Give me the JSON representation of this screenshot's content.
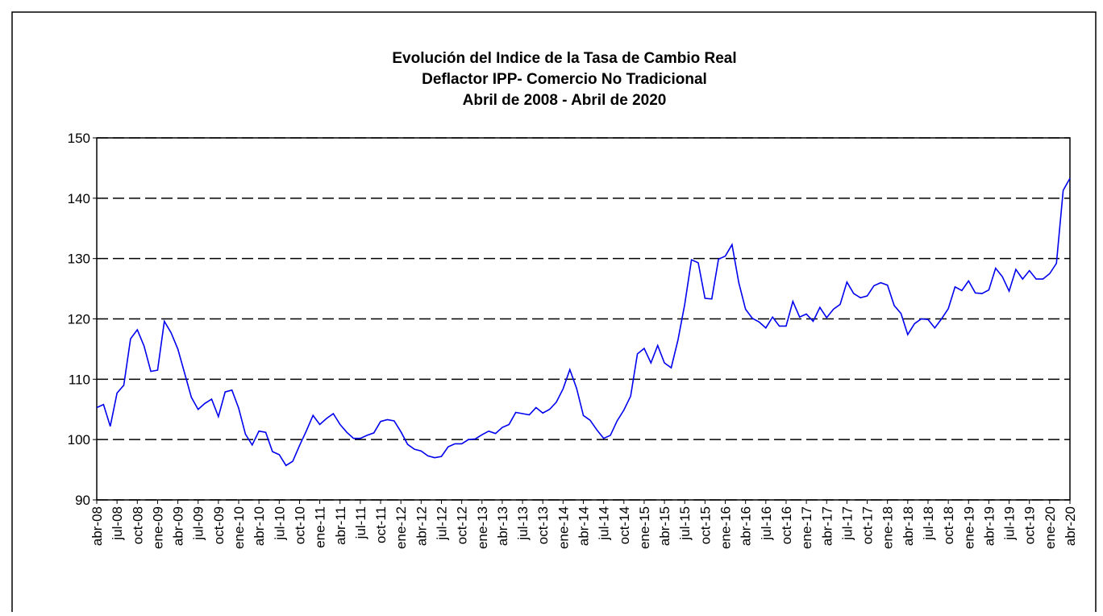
{
  "chart_data": {
    "type": "line",
    "title": [
      "Evolución del Indice de la Tasa de Cambio Real",
      "Deflactor IPP- Comercio No Tradicional",
      "Abril de 2008  -  Abril de 2020"
    ],
    "categories": [
      "abr-08",
      null,
      null,
      "jul-08",
      null,
      null,
      "oct-08",
      null,
      null,
      "ene-09",
      null,
      null,
      "abr-09",
      null,
      null,
      "jul-09",
      null,
      null,
      "oct-09",
      null,
      null,
      "ene-10",
      null,
      null,
      "abr-10",
      null,
      null,
      "jul-10",
      null,
      null,
      "oct-10",
      null,
      null,
      "ene-11",
      null,
      null,
      "abr-11",
      null,
      null,
      "jul-11",
      null,
      null,
      "oct-11",
      null,
      null,
      "ene-12",
      null,
      null,
      "abr-12",
      null,
      null,
      "jul-12",
      null,
      null,
      "oct-12",
      null,
      null,
      "ene-13",
      null,
      null,
      "abr-13",
      null,
      null,
      "jul-13",
      null,
      null,
      "oct-13",
      null,
      null,
      "ene-14",
      null,
      null,
      "abr-14",
      null,
      null,
      "jul-14",
      null,
      null,
      "oct-14",
      null,
      null,
      "ene-15",
      null,
      null,
      "abr-15",
      null,
      null,
      "jul-15",
      null,
      null,
      "oct-15",
      null,
      null,
      "ene-16",
      null,
      null,
      "abr-16",
      null,
      null,
      "jul-16",
      null,
      null,
      "oct-16",
      null,
      null,
      "ene-17",
      null,
      null,
      "abr-17",
      null,
      null,
      "jul-17",
      null,
      null,
      "oct-17",
      null,
      null,
      "ene-18",
      null,
      null,
      "abr-18",
      null,
      null,
      "jul-18",
      null,
      null,
      "oct-18",
      null,
      null,
      "ene-19",
      null,
      null,
      "abr-19",
      null,
      null,
      "jul-19",
      null,
      null,
      "oct-19",
      null,
      null,
      "ene-20",
      null,
      null,
      "abr-20"
    ],
    "series": [
      {
        "color": "#0000ee",
        "values": [
          105.3,
          105.8,
          102.2,
          107.7,
          109,
          116.7,
          118.2,
          115.5,
          111.3,
          111.5,
          119.6,
          117.7,
          115,
          111,
          107,
          105,
          106,
          106.7,
          103.8,
          107.9,
          108.2,
          105.2,
          100.9,
          99.1,
          101.4,
          101.2,
          98,
          97.5,
          95.7,
          96.4,
          99,
          101.4,
          104,
          102.5,
          103.5,
          104.3,
          102.5,
          101.2,
          100.2,
          100.2,
          100.7,
          101.1,
          103,
          103.3,
          103.1,
          101.3,
          99.2,
          98.4,
          98.1,
          97.3,
          97,
          97.2,
          98.8,
          99.3,
          99.3,
          100,
          100.1,
          100.8,
          101.4,
          101,
          102,
          102.5,
          104.5,
          104.3,
          104.1,
          105.3,
          104.4,
          105,
          106.2,
          108.4,
          111.6,
          108.5,
          104,
          103.2,
          101.6,
          100.2,
          100.7,
          103.1,
          104.9,
          107.2,
          114.2,
          115.1,
          112.7,
          115.6,
          112.7,
          111.9,
          116.5,
          122.4,
          129.8,
          129.3,
          123.4,
          123.3,
          129.9,
          130.4,
          132.3,
          126,
          121.6,
          120.1,
          119.5,
          118.5,
          120.3,
          118.8,
          118.8,
          122.9,
          120.3,
          120.8,
          119.6,
          121.9,
          120.2,
          121.6,
          122.4,
          126.1,
          124.2,
          123.5,
          123.8,
          125.5,
          126,
          125.6,
          122.2,
          120.9,
          117.4,
          119.2,
          120,
          119.9,
          118.5,
          120,
          121.7,
          125.3,
          124.7,
          126.3,
          124.3,
          124.2,
          124.8,
          128.4,
          127,
          124.6,
          128.2,
          126.6,
          128,
          126.6,
          126.6,
          127.5,
          129.2,
          141.3,
          143.3
        ]
      }
    ],
    "ylim": [
      90,
      150
    ],
    "yticks": [
      90,
      100,
      110,
      120,
      130,
      140,
      150
    ],
    "grid": true
  }
}
